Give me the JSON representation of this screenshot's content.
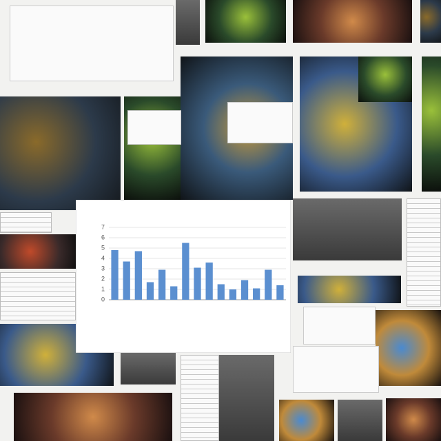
{
  "chart_data": {
    "type": "bar",
    "values": [
      4.8,
      3.7,
      4.7,
      1.7,
      2.9,
      1.3,
      5.5,
      3.1,
      3.6,
      1.5,
      1.0,
      1.9,
      1.1,
      2.9,
      1.4
    ],
    "color": "#5b8fd0",
    "ylim": [
      0,
      7
    ],
    "yticks": [
      0,
      1,
      2,
      3,
      4,
      5,
      6,
      7
    ],
    "grid": true
  }
}
